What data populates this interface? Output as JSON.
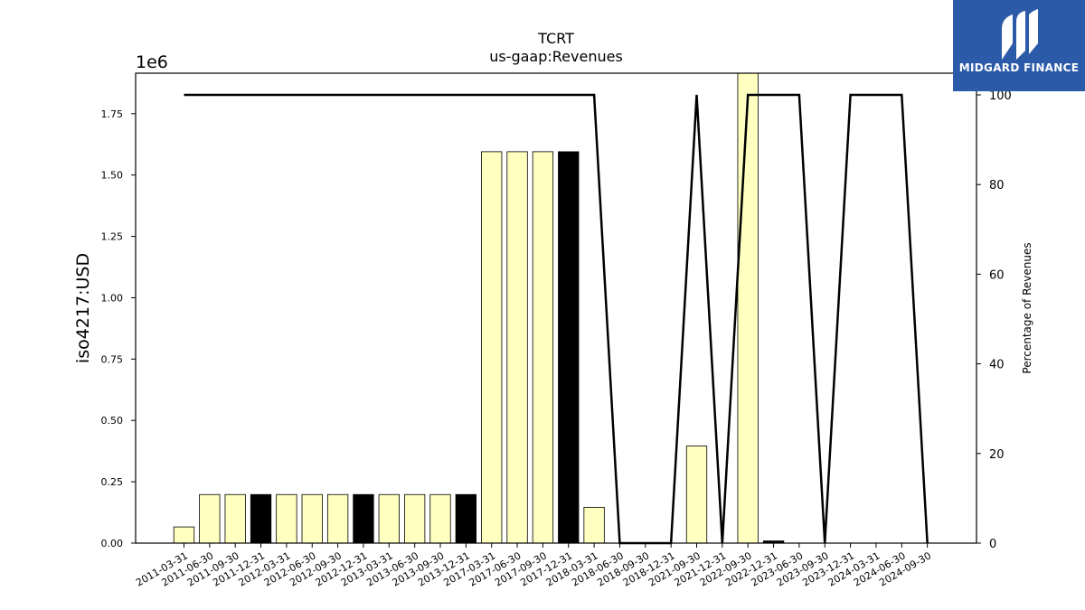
{
  "brand": {
    "name": "MIDGARD FINANCE",
    "bg_color": "#2b5aa8"
  },
  "chart_data": {
    "type": "bar",
    "title": "TCRT",
    "subtitle": "us-gaap:Revenues",
    "ylabel": "iso4217:USD",
    "y2label": "Percentage of Revenues",
    "offset_label": "1e6",
    "categories": [
      "2011-03-31",
      "2011-06-30",
      "2011-09-30",
      "2011-12-31",
      "2012-03-31",
      "2012-06-30",
      "2012-09-30",
      "2012-12-31",
      "2013-03-31",
      "2013-06-30",
      "2013-09-30",
      "2013-12-31",
      "2017-03-31",
      "2017-06-30",
      "2017-09-30",
      "2017-12-31",
      "2018-03-31",
      "2018-06-30",
      "2018-09-30",
      "2018-12-31",
      "2021-09-30",
      "2021-12-31",
      "2022-09-30",
      "2022-12-31",
      "2023-06-30",
      "2023-09-30",
      "2023-12-31",
      "2024-03-31",
      "2024-06-30",
      "2024-09-30"
    ],
    "series": [
      {
        "values": [
          66000,
          198000,
          198000,
          198000,
          198000,
          198000,
          198000,
          198000,
          198000,
          198000,
          198000,
          198000,
          1595000,
          1595000,
          1595000,
          1595000,
          146000,
          0,
          0,
          0,
          396000,
          0,
          1915000,
          9000,
          0,
          0,
          0,
          0,
          0,
          0
        ],
        "colors": [
          "#ffffbf",
          "#ffffbf",
          "#ffffbf",
          "#000000",
          "#ffffbf",
          "#ffffbf",
          "#ffffbf",
          "#000000",
          "#ffffbf",
          "#ffffbf",
          "#ffffbf",
          "#000000",
          "#ffffbf",
          "#ffffbf",
          "#ffffbf",
          "#000000",
          "#ffffbf",
          "#ffffbf",
          "#ffffbf",
          "#000000",
          "#ffffbf",
          "#000000",
          "#ffffbf",
          "#000000",
          "#ffffbf",
          "#ffffbf",
          "#ffffbf",
          "#ffffbf",
          "#ffffbf",
          "#ffffbf"
        ]
      },
      {
        "axis": "right",
        "type": "line",
        "color": "#000000",
        "values": [
          100,
          100,
          100,
          100,
          100,
          100,
          100,
          100,
          100,
          100,
          100,
          100,
          100,
          100,
          100,
          100,
          100,
          0,
          0,
          0,
          100,
          0,
          100,
          100,
          100,
          0,
          100,
          100,
          100,
          0
        ]
      }
    ],
    "ylim": [
      0,
      1915000
    ],
    "y2lim": [
      0,
      100
    ],
    "yticks": [
      0,
      250000,
      500000,
      750000,
      1000000,
      1250000,
      1500000,
      1750000
    ],
    "ytick_labels": [
      "0.00",
      "0.25",
      "0.50",
      "0.75",
      "1.00",
      "1.25",
      "1.50",
      "1.75"
    ],
    "y2ticks": [
      0,
      20,
      40,
      60,
      80,
      100
    ],
    "grid": false
  }
}
